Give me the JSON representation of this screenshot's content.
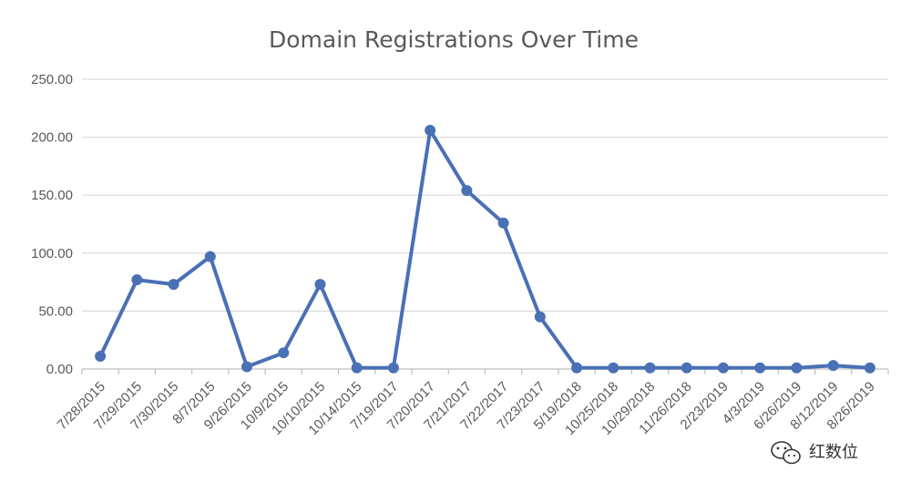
{
  "chart_data": {
    "type": "line",
    "title": "Domain Registrations Over Time",
    "xlabel": "",
    "ylabel": "",
    "ylim": [
      0,
      250
    ],
    "yticks": [
      "0.00",
      "50.00",
      "100.00",
      "150.00",
      "200.00",
      "250.00"
    ],
    "grid": true,
    "legend": "none",
    "color": "#4a70b5",
    "categories": [
      "7/28/2015",
      "7/29/2015",
      "7/30/2015",
      "8/7/2015",
      "9/26/2015",
      "10/9/2015",
      "10/10/2015",
      "10/14/2015",
      "7/19/2017",
      "7/20/2017",
      "7/21/2017",
      "7/22/2017",
      "7/23/2017",
      "5/19/2018",
      "10/25/2018",
      "10/29/2018",
      "11/26/2018",
      "2/23/2019",
      "4/3/2019",
      "6/26/2019",
      "8/12/2019",
      "8/26/2019"
    ],
    "series": [
      {
        "values": [
          11,
          77,
          73,
          97,
          2,
          14,
          73,
          1,
          1,
          206,
          154,
          126,
          45,
          1,
          1,
          1,
          1,
          1,
          1,
          1,
          3,
          1
        ]
      }
    ]
  },
  "watermark": {
    "text": "红数位",
    "icon": "wechat-icon"
  }
}
